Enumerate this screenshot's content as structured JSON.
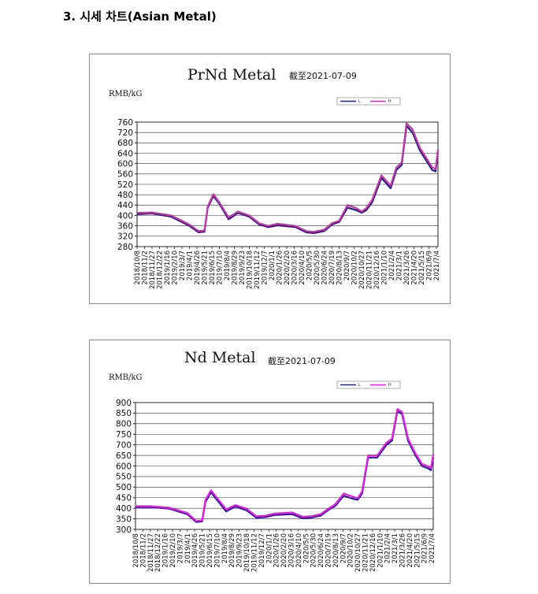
{
  "heading": "3. 시세 차트(Asian Metal)",
  "chart_data": [
    {
      "type": "line",
      "title": "PrNd Metal",
      "subtitle": "截至2021-07-09",
      "ylabel": "RMB/kG",
      "ylim": [
        280,
        760
      ],
      "yticks": [
        280,
        320,
        360,
        400,
        440,
        480,
        520,
        560,
        600,
        640,
        680,
        720,
        760
      ],
      "grid": true,
      "legend": "top-right",
      "x_dates": [
        "2018-10-08",
        "2018-11-27",
        "2019-01-30",
        "2019-04-01",
        "2019-05-01",
        "2019-05-21",
        "2019-06-01",
        "2019-06-20",
        "2019-07-10",
        "2019-08-10",
        "2019-09-10",
        "2019-10-18",
        "2019-11-20",
        "2019-12-20",
        "2020-01-20",
        "2020-03-20",
        "2020-04-25",
        "2020-05-20",
        "2020-06-24",
        "2020-07-20",
        "2020-08-13",
        "2020-09-10",
        "2020-10-10",
        "2020-10-27",
        "2020-11-11",
        "2020-12-01",
        "2021-01-01",
        "2021-02-01",
        "2021-02-20",
        "2021-03-10",
        "2021-03-26",
        "2021-04-15",
        "2021-05-10",
        "2021-06-01",
        "2021-06-20",
        "2021-07-01",
        "2021-07-09"
      ],
      "xticks": [
        "2018/10/8",
        "2018/11/2",
        "2018/11/27",
        "2018/12/22",
        "2019/1/16",
        "2019/2/10",
        "2019/3/7",
        "2019/4/1",
        "2019/4/26",
        "2019/5/21",
        "2019/6/15",
        "2019/7/10",
        "2019/8/4",
        "2019/8/29",
        "2019/9/23",
        "2019/10/18",
        "2019/11/12",
        "2019/12/7",
        "2020/1/1",
        "2020/1/26",
        "2020/2/20",
        "2020/3/16",
        "2020/4/10",
        "2020/5/5",
        "2020/5/30",
        "2020/6/24",
        "2020/7/19",
        "2020/8/13",
        "2020/9/7",
        "2020/10/2",
        "2020/10/27",
        "2020/11/21",
        "2020/12/16",
        "2021/1/10",
        "2021/2/4",
        "2021/3/1",
        "2021/3/26",
        "2021/4/20",
        "2021/5/15",
        "2021/6/9",
        "2021/7/4"
      ],
      "series": [
        {
          "name": "L",
          "color": "#1f1f7a",
          "values": [
            405,
            408,
            395,
            360,
            335,
            337,
            430,
            475,
            445,
            385,
            410,
            395,
            365,
            355,
            362,
            355,
            335,
            332,
            340,
            365,
            375,
            430,
            420,
            410,
            420,
            450,
            545,
            505,
            575,
            595,
            745,
            720,
            650,
            610,
            575,
            570,
            645
          ]
        },
        {
          "name": "H",
          "color": "#c23aa8",
          "values": [
            410,
            412,
            400,
            365,
            340,
            342,
            435,
            482,
            450,
            392,
            415,
            400,
            370,
            360,
            368,
            360,
            340,
            337,
            345,
            370,
            380,
            440,
            428,
            415,
            428,
            460,
            555,
            515,
            585,
            605,
            755,
            732,
            660,
            620,
            585,
            580,
            655
          ]
        }
      ]
    },
    {
      "type": "line",
      "title": "Nd Metal",
      "subtitle": "截至2021-07-09",
      "ylabel": "RMB/kG",
      "ylim": [
        300,
        900
      ],
      "yticks": [
        300,
        350,
        400,
        450,
        500,
        550,
        600,
        650,
        700,
        750,
        800,
        850,
        900
      ],
      "grid": true,
      "legend": "top-right",
      "x_dates": [
        "2018-10-08",
        "2018-11-27",
        "2019-01-30",
        "2019-04-01",
        "2019-05-01",
        "2019-05-21",
        "2019-06-01",
        "2019-06-20",
        "2019-07-10",
        "2019-08-10",
        "2019-09-10",
        "2019-10-18",
        "2019-11-20",
        "2019-12-20",
        "2020-01-20",
        "2020-03-20",
        "2020-04-25",
        "2020-05-20",
        "2020-06-24",
        "2020-07-20",
        "2020-08-13",
        "2020-09-10",
        "2020-10-10",
        "2020-10-27",
        "2020-11-11",
        "2020-12-01",
        "2021-01-01",
        "2021-02-01",
        "2021-02-20",
        "2021-03-10",
        "2021-03-26",
        "2021-04-15",
        "2021-05-10",
        "2021-06-01",
        "2021-06-20",
        "2021-07-01",
        "2021-07-09"
      ],
      "xticks": [
        "2018/10/8",
        "2018/11/2",
        "2018/11/27",
        "2018/12/22",
        "2019/1/16",
        "2019/2/10",
        "2019/3/7",
        "2019/4/1",
        "2019/4/26",
        "2019/5/21",
        "2019/6/15",
        "2019/7/10",
        "2019/8/4",
        "2019/8/29",
        "2019/9/23",
        "2019/10/18",
        "2019/11/12",
        "2019/12/7",
        "2020/1/1",
        "2020/1/26",
        "2020/2/20",
        "2020/3/16",
        "2020/4/10",
        "2020/5/5",
        "2020/5/30",
        "2020/6/24",
        "2020/7/19",
        "2020/8/13",
        "2020/9/7",
        "2020/10/2",
        "2020/10/27",
        "2020/11/21",
        "2020/12/16",
        "2021/1/10",
        "2021/2/4",
        "2021/3/1",
        "2021/3/26",
        "2021/4/20",
        "2021/5/15",
        "2021/6/9",
        "2021/7/4"
      ],
      "series": [
        {
          "name": "L",
          "color": "#23238c",
          "values": [
            405,
            405,
            398,
            372,
            335,
            338,
            430,
            475,
            440,
            385,
            408,
            390,
            355,
            358,
            368,
            372,
            352,
            355,
            365,
            392,
            412,
            460,
            445,
            440,
            470,
            640,
            640,
            700,
            720,
            860,
            845,
            720,
            650,
            600,
            590,
            580,
            640
          ]
        },
        {
          "name": "H",
          "color": "#e620e6",
          "values": [
            410,
            410,
            403,
            378,
            340,
            343,
            440,
            485,
            450,
            395,
            415,
            398,
            362,
            365,
            375,
            380,
            360,
            362,
            372,
            398,
            420,
            470,
            455,
            448,
            480,
            650,
            650,
            710,
            730,
            870,
            855,
            730,
            660,
            610,
            600,
            590,
            655
          ]
        }
      ]
    }
  ]
}
